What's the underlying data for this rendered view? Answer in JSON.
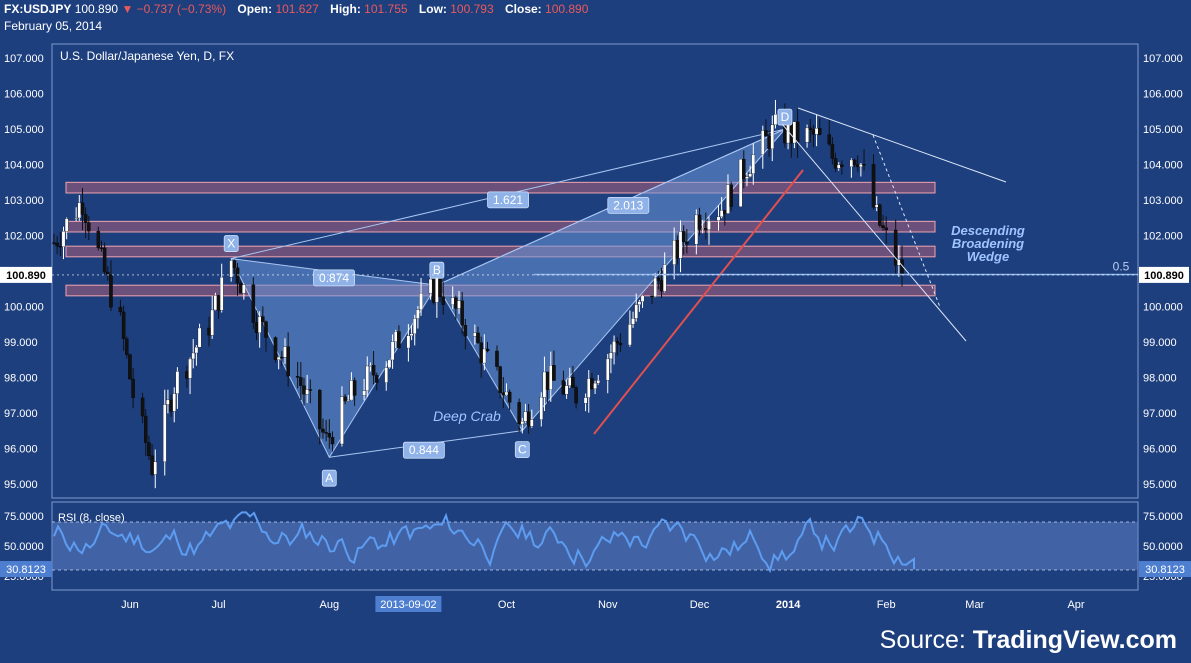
{
  "header": {
    "symbol": "FX:USDJPY",
    "price": "100.890",
    "change": "−0.737 (−0.73%)",
    "open_label": "Open:",
    "open": "101.627",
    "high_label": "High:",
    "high": "101.755",
    "low_label": "Low:",
    "low": "100.793",
    "close_label": "Close:",
    "close": "100.890",
    "date": "February 05, 2014"
  },
  "source": {
    "label": "Source:",
    "brand": "TradingView.com"
  },
  "colors": {
    "background": "#1e3f7e",
    "bull_candle": "#ffffff",
    "bear_candle": "#111111",
    "zone_fill": "#d46a78",
    "trendline_red": "#e05050",
    "rsi_line": "#5d9cf0",
    "pattern_fill": "#6a98d8",
    "negative": "#e9595b"
  },
  "chart_data": [
    {
      "type": "candlestick",
      "title": "U.S. Dollar/Japanese Yen, D, FX",
      "y_axis_ticks": [
        "107.000",
        "106.000",
        "105.000",
        "104.000",
        "103.000",
        "102.000",
        "101.000",
        "100.000",
        "99.000",
        "98.000",
        "97.000",
        "96.000",
        "95.000"
      ],
      "ylim": [
        94.6,
        107.4
      ],
      "x_axis_ticks": [
        "Jun",
        "Jul",
        "Aug",
        "Oct",
        "Nov",
        "Dec",
        "2014",
        "Feb",
        "Mar",
        "Apr"
      ],
      "x_cursor_label": "2013-09-02",
      "last_price_label": "100.890",
      "last_price": 100.89,
      "approx_closes": [
        {
          "date": "2013-05-13",
          "close": 101.8
        },
        {
          "date": "2013-05-22",
          "close": 103.0
        },
        {
          "date": "2013-05-27",
          "close": 101.5
        },
        {
          "date": "2013-06-03",
          "close": 99.5
        },
        {
          "date": "2013-06-07",
          "close": 97.5
        },
        {
          "date": "2013-06-13",
          "close": 95.5
        },
        {
          "date": "2013-06-20",
          "close": 97.8
        },
        {
          "date": "2013-07-01",
          "close": 99.5
        },
        {
          "date": "2013-07-08",
          "close": 101.3
        },
        {
          "date": "2013-07-17",
          "close": 99.5
        },
        {
          "date": "2013-07-29",
          "close": 98.0
        },
        {
          "date": "2013-08-07",
          "close": 96.2
        },
        {
          "date": "2013-08-15",
          "close": 97.5
        },
        {
          "date": "2013-08-26",
          "close": 98.5
        },
        {
          "date": "2013-09-04",
          "close": 99.8
        },
        {
          "date": "2013-09-11",
          "close": 100.6
        },
        {
          "date": "2013-09-20",
          "close": 99.5
        },
        {
          "date": "2013-10-01",
          "close": 97.8
        },
        {
          "date": "2013-10-08",
          "close": 96.7
        },
        {
          "date": "2013-10-15",
          "close": 98.0
        },
        {
          "date": "2013-10-25",
          "close": 97.5
        },
        {
          "date": "2013-11-04",
          "close": 98.6
        },
        {
          "date": "2013-11-13",
          "close": 99.8
        },
        {
          "date": "2013-11-22",
          "close": 101.0
        },
        {
          "date": "2013-12-02",
          "close": 102.5
        },
        {
          "date": "2013-12-10",
          "close": 102.8
        },
        {
          "date": "2013-12-18",
          "close": 104.0
        },
        {
          "date": "2013-12-27",
          "close": 105.0
        },
        {
          "date": "2014-01-02",
          "close": 104.8
        },
        {
          "date": "2014-01-09",
          "close": 104.8
        },
        {
          "date": "2014-01-14",
          "close": 104.2
        },
        {
          "date": "2014-01-22",
          "close": 104.3
        },
        {
          "date": "2014-01-28",
          "close": 102.5
        },
        {
          "date": "2014-02-05",
          "close": 100.89
        }
      ],
      "resistance_zones": [
        {
          "from": 103.2,
          "to": 103.5
        },
        {
          "from": 102.1,
          "to": 102.4
        },
        {
          "from": 101.4,
          "to": 101.7
        },
        {
          "from": 100.3,
          "to": 100.6
        }
      ],
      "harmonic_pattern": {
        "name": "Deep Crab",
        "points": [
          {
            "label": "X",
            "date": "2013-07-08",
            "price": 101.35
          },
          {
            "label": "A",
            "date": "2013-08-08",
            "price": 95.75
          },
          {
            "label": "B",
            "date": "2013-09-11",
            "price": 100.6
          },
          {
            "label": "C",
            "date": "2013-10-08",
            "price": 96.5
          },
          {
            "label": "D",
            "date": "2013-12-30",
            "price": 105.0
          }
        ],
        "ratios": [
          "0.874",
          "0.844",
          "1.621",
          "2.013"
        ]
      },
      "wedge_label": "Descending Broadening Wedge",
      "wedge_label_lines": [
        "Descending",
        "Broadening",
        "Wedge"
      ],
      "fib_level_label": "0.5",
      "fib_level": 100.9
    },
    {
      "type": "line",
      "title": "RSI (8, close)",
      "y_axis_ticks": [
        "75.0000",
        "50.0000",
        "25.0000"
      ],
      "bands": [
        70,
        30
      ],
      "last_value_label": "30.8123",
      "last_value": 30.81
    }
  ]
}
